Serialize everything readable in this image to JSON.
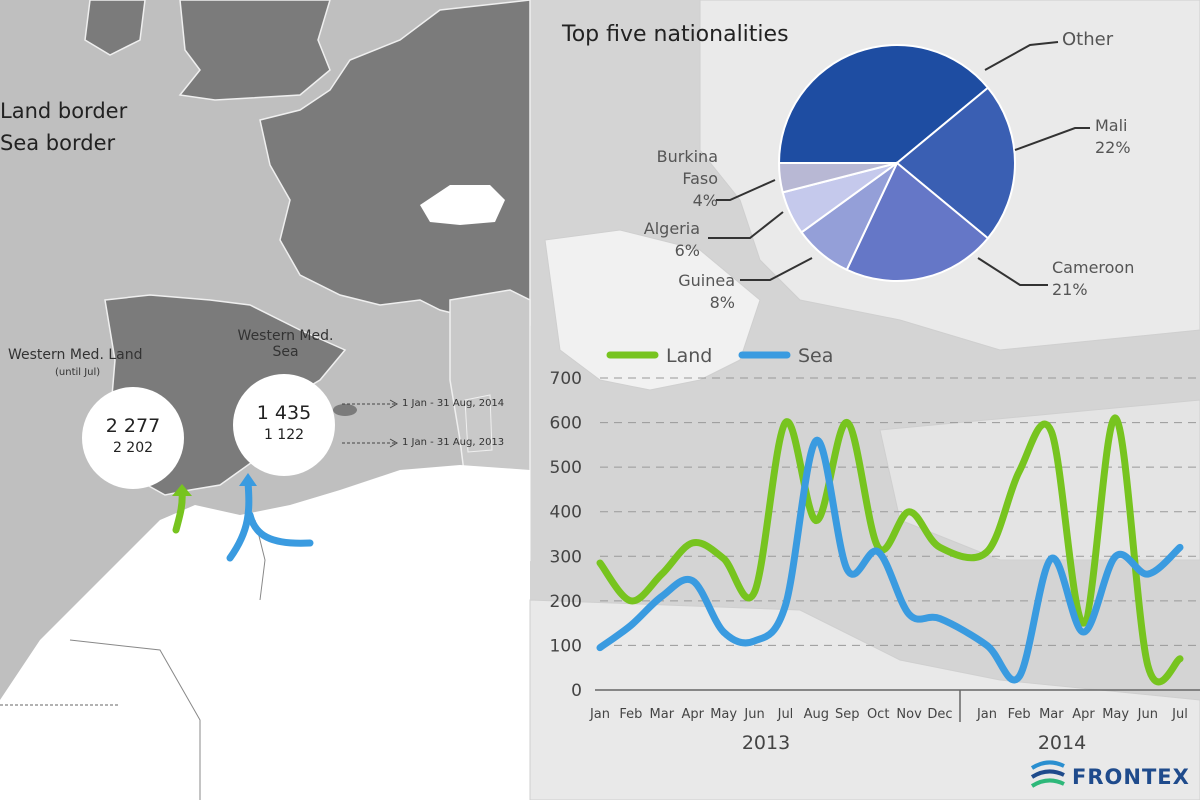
{
  "map": {
    "legend": [
      "Land border",
      "Sea border"
    ],
    "routes": [
      {
        "name": "Western Med. Land",
        "sub": "(until Jul)",
        "value_2014": "2 277",
        "value_2013": "2 202"
      },
      {
        "name": "Western Med.",
        "name2": "Sea",
        "value_2014": "1 435",
        "value_2013": "1 122"
      }
    ],
    "period_2014": "1 Jan - 31 Aug, 2014",
    "period_2013": "1 Jan - 31 Aug, 2013",
    "brand": "FRONTEX"
  },
  "colors": {
    "land": "#77c41f",
    "sea": "#3a9be0",
    "pie_dark": "#1e4da2",
    "map_land": "#7b7b7b",
    "sea_bg": "#bfbfbf"
  },
  "chart_data": [
    {
      "type": "pie",
      "title": "Top five nationalities",
      "labels": [
        "Other",
        "Mali",
        "Cameroon",
        "Guinea",
        "Algeria",
        "Burkina Faso"
      ],
      "values": [
        39,
        22,
        21,
        8,
        6,
        4
      ],
      "value_labels": [
        "",
        "22%",
        "21%",
        "8%",
        "6%",
        "4%"
      ],
      "colors": [
        "#1e4da2",
        "#3a5fb3",
        "#6577c7",
        "#949fd8",
        "#c5c9ec",
        "#b8b8d4"
      ]
    },
    {
      "type": "line",
      "series": [
        {
          "name": "Land",
          "color": "#77c41f",
          "values": [
            285,
            200,
            260,
            330,
            295,
            220,
            600,
            380,
            600,
            320,
            400,
            320,
            310,
            490,
            580,
            150,
            610,
            55,
            70
          ]
        },
        {
          "name": "Sea",
          "color": "#3a9be0",
          "values": [
            95,
            145,
            210,
            245,
            130,
            110,
            190,
            560,
            270,
            310,
            170,
            160,
            100,
            30,
            295,
            130,
            300,
            260,
            320
          ]
        }
      ],
      "x": [
        "Jan",
        "Feb",
        "Mar",
        "Apr",
        "May",
        "Jun",
        "Jul",
        "Aug",
        "Sep",
        "Oct",
        "Nov",
        "Dec",
        "Jan",
        "Feb",
        "Mar",
        "Apr",
        "May",
        "Jun",
        "Jul"
      ],
      "year_groups": [
        "2013",
        "2014"
      ],
      "yticks": [
        "0",
        "100",
        "200",
        "300",
        "400",
        "500",
        "600",
        "700"
      ],
      "ylim": [
        0,
        700
      ],
      "grid": true,
      "legend_position": "top-left"
    }
  ]
}
